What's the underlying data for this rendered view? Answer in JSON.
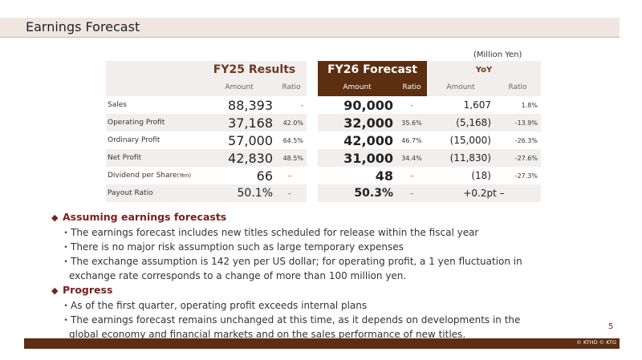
{
  "page": {
    "title": "Earnings Forecast",
    "page_number": "5",
    "copyright": "© KTHD © KTG"
  },
  "table": {
    "unit": "(Million Yen)",
    "fy25_header": "FY25 Results",
    "fy26_header": "FY26 Forecast",
    "yoy_header": "YoY",
    "sub_amount": "Amount",
    "sub_ratio": "Ratio",
    "rows": [
      {
        "label": "Sales",
        "fy25_amount": "88,393",
        "fy25_ratio": "-",
        "fy26_amount": "90,000",
        "fy26_ratio": "-",
        "yoy_amount": "1,607",
        "yoy_ratio": "1.8%"
      },
      {
        "label": "Operating Profit",
        "fy25_amount": "37,168",
        "fy25_ratio": "42.0%",
        "fy26_amount": "32,000",
        "fy26_ratio": "35.6%",
        "yoy_amount": "(5,168)",
        "yoy_ratio": "-13.9%"
      },
      {
        "label": "Ordinary Profit",
        "fy25_amount": "57,000",
        "fy25_ratio": "64.5%",
        "fy26_amount": "42,000",
        "fy26_ratio": "46.7%",
        "yoy_amount": "(15,000)",
        "yoy_ratio": "-26.3%"
      },
      {
        "label": "Net Profit",
        "fy25_amount": "42,830",
        "fy25_ratio": "48.5%",
        "fy26_amount": "31,000",
        "fy26_ratio": "34.4%",
        "yoy_amount": "(11,830)",
        "yoy_ratio": "-27.6%"
      },
      {
        "label": "Dividend per Share",
        "label_suffix": "(Yen)",
        "fy25_amount": "66",
        "fy25_ratio": "–",
        "fy26_amount": "48",
        "fy26_ratio": "–",
        "yoy_amount": "(18)",
        "yoy_ratio": "-27.3%"
      },
      {
        "label": "Payout Ratio",
        "fy25_amount": "50.1%",
        "fy25_ratio": "–",
        "fy26_amount": "50.3%",
        "fy26_ratio": "–",
        "yoy_merged": "+0.2pt –"
      }
    ]
  },
  "notes": {
    "assumptions_heading": "Assuming earnings forecasts",
    "assumptions": [
      "The earnings forecast includes new titles scheduled for release within the fiscal year",
      "There is no major risk assumption such as large temporary expenses",
      "The exchange assumption is 142 yen per US dollar; for operating profit, a 1 yen fluctuation in"
    ],
    "assumptions_cont": "exchange rate corresponds to a change of more than 100 million yen.",
    "progress_heading": "Progress",
    "progress": [
      "As of the first quarter, operating profit exceeds internal plans",
      "The earnings forecast remains unchanged at this time, as it depends on developments in the"
    ],
    "progress_cont": "global economy and financial markets and on the sales performance of new titles.",
    "bullet_prefix": "・",
    "heading_marker": "◆"
  },
  "colors": {
    "accent": "#5c2e12",
    "heading": "#7a1f1f",
    "row_shade": "#f2eeee"
  }
}
